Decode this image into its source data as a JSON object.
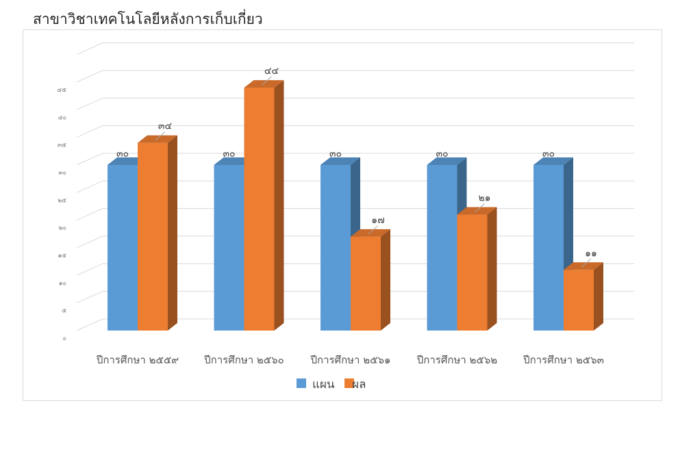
{
  "page": {
    "title": "สาขาวิชาเทคโนโลยีหลังการเก็บเกี่ยว"
  },
  "chart_data": {
    "type": "bar",
    "title": "สาขาวิชาเทคโนโลยีหลังการเก็บเกี่ยว",
    "three_d": true,
    "categories": [
      "ปีการศึกษา ๒๕๕๙",
      "ปีการศึกษา ๒๕๖๐",
      "ปีการศึกษา ๒๕๖๑",
      "ปีการศึกษา ๒๕๖๒",
      "ปีการศึกษา ๒๕๖๓"
    ],
    "series": [
      {
        "name": "แผน",
        "color": "#5b9bd5",
        "values": [
          30,
          30,
          30,
          30,
          30
        ],
        "labels": [
          "๓๐",
          "๓๐",
          "๓๐",
          "๓๐",
          "๓๐"
        ]
      },
      {
        "name": "ผล",
        "color": "#ed7d31",
        "values": [
          34,
          44,
          17,
          21,
          11
        ],
        "labels": [
          "๓๔",
          "๔๔",
          "๑๗",
          "๒๑",
          "๑๑"
        ]
      }
    ],
    "y_ticks": [
      {
        "value": 0,
        "label": "๐"
      },
      {
        "value": 5,
        "label": "๕"
      },
      {
        "value": 10,
        "label": "๑๐"
      },
      {
        "value": 15,
        "label": "๑๕"
      },
      {
        "value": 20,
        "label": "๒๐"
      },
      {
        "value": 25,
        "label": "๒๕"
      },
      {
        "value": 30,
        "label": "๓๐"
      },
      {
        "value": 35,
        "label": "๓๕"
      },
      {
        "value": 40,
        "label": "๔๐"
      },
      {
        "value": 45,
        "label": "๔๕"
      }
    ],
    "ylim": [
      0,
      45
    ],
    "grid": true,
    "legend": "bottom"
  }
}
